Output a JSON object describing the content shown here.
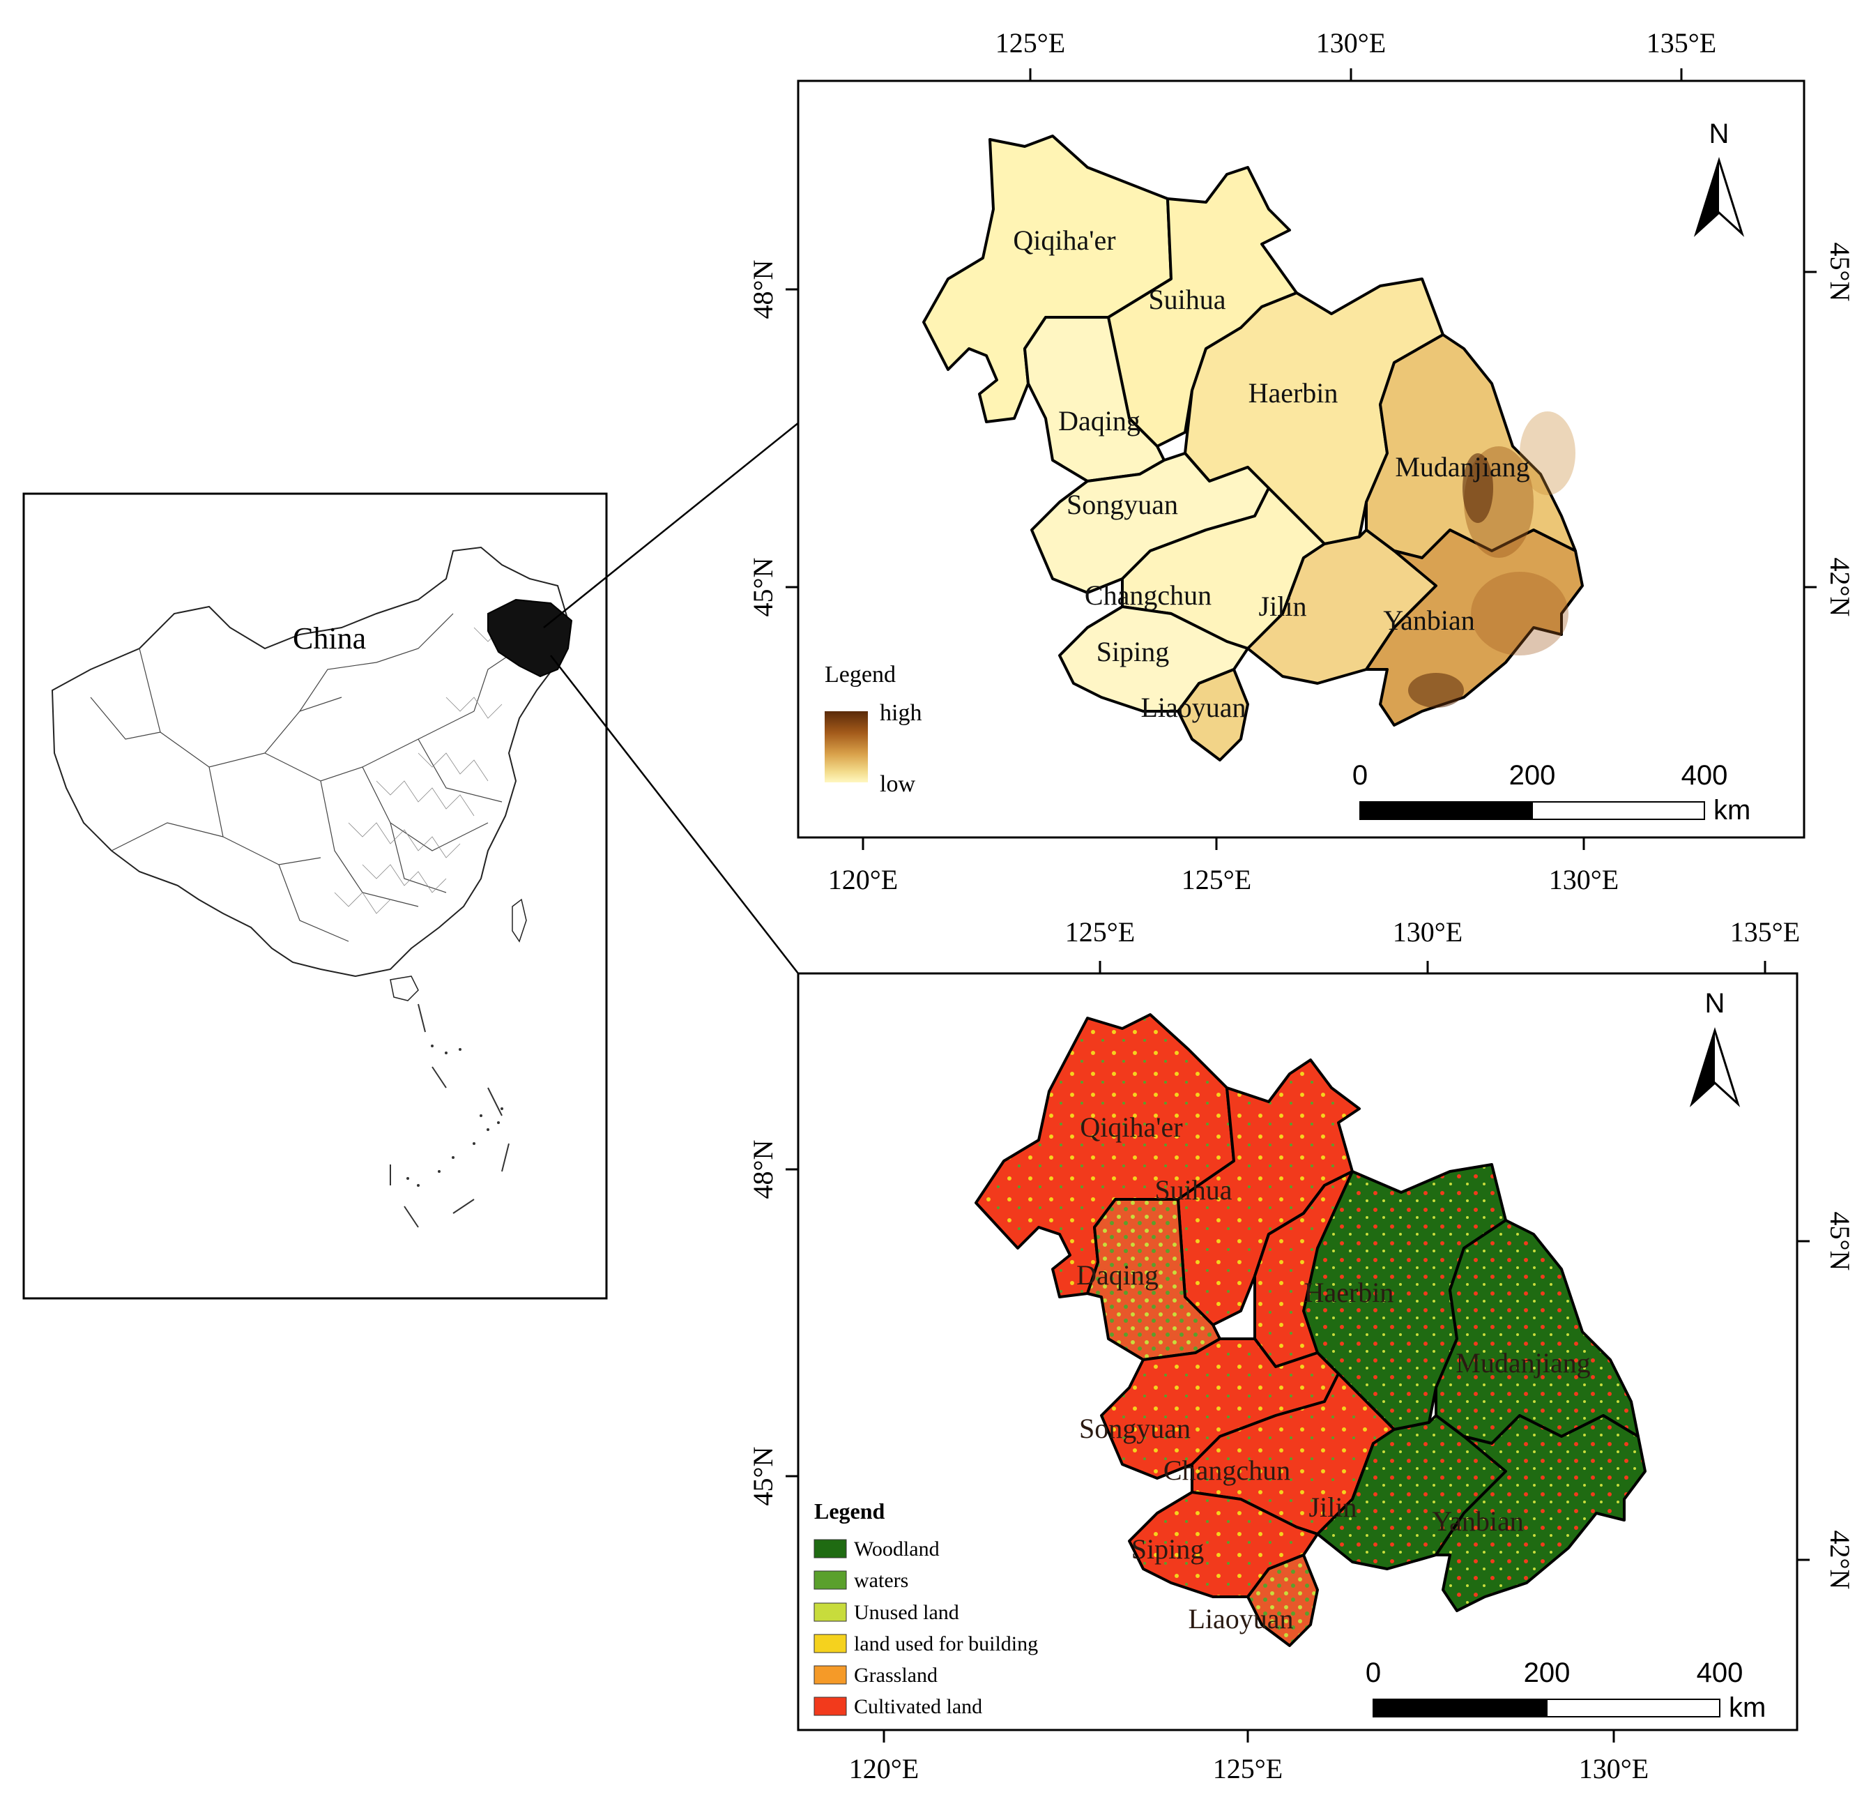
{
  "inset": {
    "country_label": "China"
  },
  "dem_map": {
    "top_ticks": [
      "125°E",
      "130°E",
      "135°E"
    ],
    "bottom_ticks": [
      "120°E",
      "125°E",
      "130°E"
    ],
    "left_ticks": [
      "48°N",
      "45°N"
    ],
    "right_ticks": [
      "45°N",
      "42°N"
    ],
    "north_label": "N",
    "legend_title": "Legend",
    "legend_high": "high",
    "legend_low": "low",
    "ramp_colors": [
      "#5a2a0a",
      "#a35a1a",
      "#d9a14a",
      "#f3dc8c",
      "#fff7c0"
    ],
    "scale_labels": [
      "0",
      "200",
      "400"
    ],
    "scale_unit": "km",
    "regions": [
      "Qiqiha'er",
      "Suihua",
      "Daqing",
      "Haerbin",
      "Mudanjiang",
      "Songyuan",
      "Changchun",
      "Jilin",
      "Yanbian",
      "Siping",
      "Liaoyuan"
    ]
  },
  "landuse_map": {
    "top_ticks": [
      "125°E",
      "130°E",
      "135°E"
    ],
    "bottom_ticks": [
      "120°E",
      "125°E",
      "130°E"
    ],
    "left_ticks": [
      "48°N",
      "45°N"
    ],
    "right_ticks": [
      "45°N",
      "42°N"
    ],
    "north_label": "N",
    "legend_title": "Legend",
    "legend_items": [
      {
        "label": "Woodland",
        "color": "#1f6b12"
      },
      {
        "label": "waters",
        "color": "#5aa02c"
      },
      {
        "label": "Unused land",
        "color": "#c8dc3c"
      },
      {
        "label": "land used for building",
        "color": "#f5d21e"
      },
      {
        "label": "Grassland",
        "color": "#f59a28"
      },
      {
        "label": "Cultivated land",
        "color": "#f23a1c"
      }
    ],
    "scale_labels": [
      "0",
      "200",
      "400"
    ],
    "scale_unit": "km",
    "regions": [
      "Qiqiha'er",
      "Suihua",
      "Daqing",
      "Haerbin",
      "Mudanjiang",
      "Songyuan",
      "Changchun",
      "Jilin",
      "Yanbian",
      "Siping",
      "Liaoyuan"
    ]
  }
}
